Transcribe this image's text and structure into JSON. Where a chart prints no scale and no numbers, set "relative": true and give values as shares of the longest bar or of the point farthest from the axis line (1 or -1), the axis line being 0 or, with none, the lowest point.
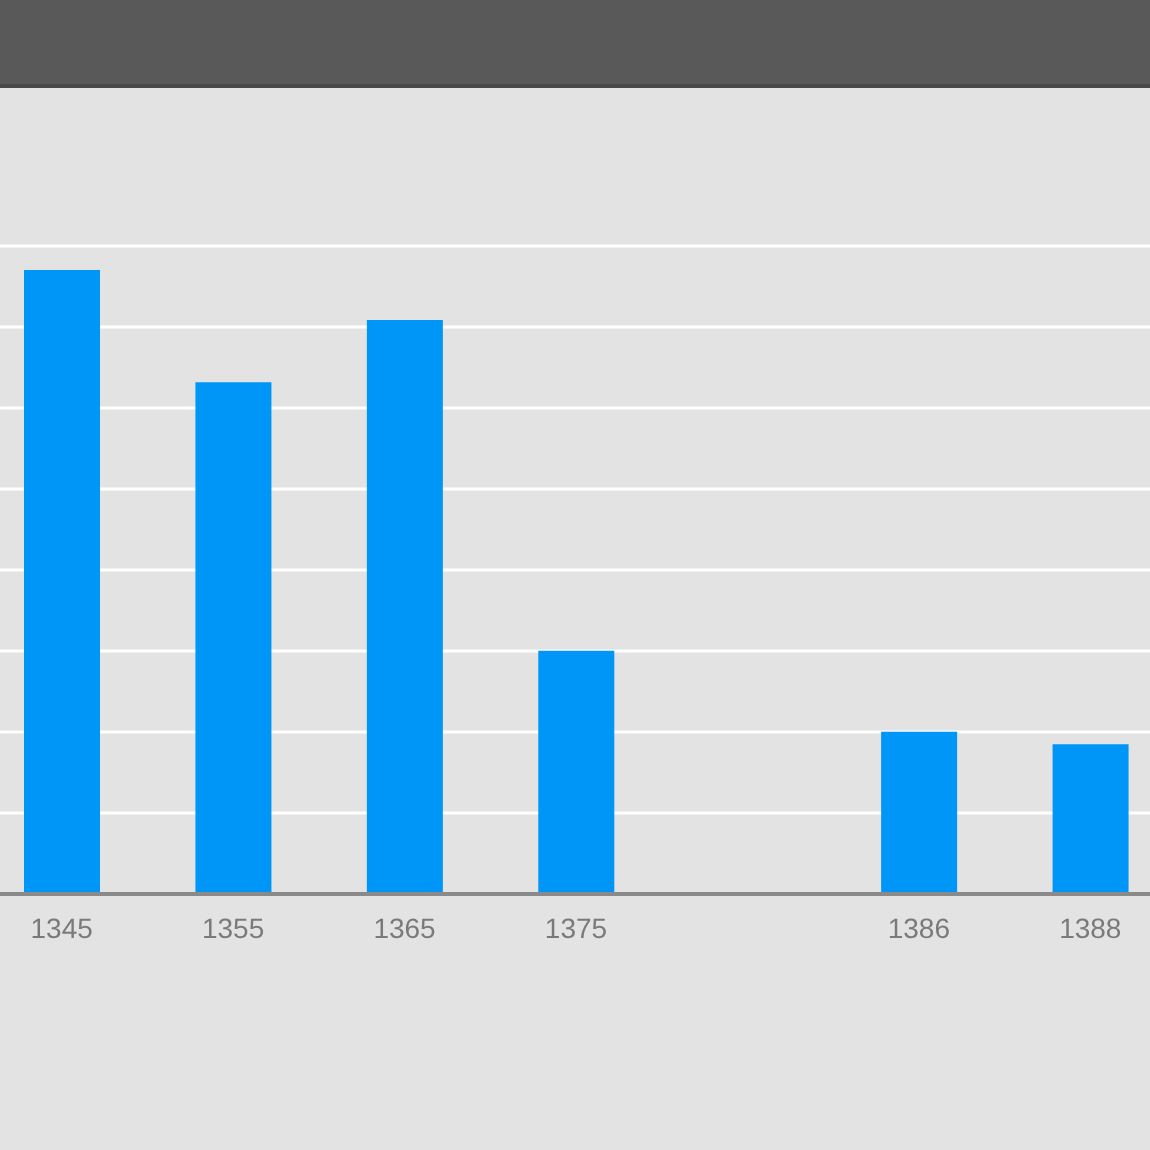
{
  "chart_data": {
    "type": "bar",
    "relative": true,
    "categories": [
      "1345",
      "1355",
      "1365",
      "1375",
      null,
      "1386",
      "1388"
    ],
    "values": [
      1,
      0.82,
      0.92,
      0.39,
      null,
      0.26,
      0.24
    ],
    "color": "#0096f8",
    "grid": "y"
  }
}
